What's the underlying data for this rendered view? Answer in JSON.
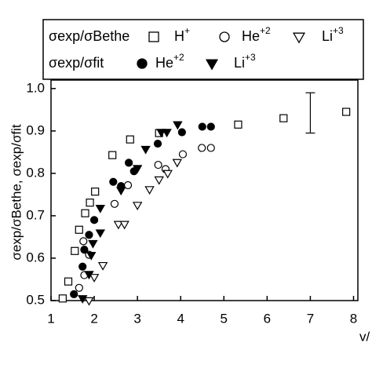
{
  "chart_data": {
    "type": "scatter",
    "x_label": "v/",
    "y_label": "σexp/σBethe, σexp/σfit",
    "xlim": [
      1,
      8.1
    ],
    "ylim": [
      0.5,
      1.02
    ],
    "xticks": [
      1,
      2,
      3,
      4,
      5,
      6,
      7,
      8
    ],
    "yticks": [
      0.5,
      0.6,
      0.7,
      0.8,
      0.9,
      {
        "value": 1.0,
        "label": "1.0"
      }
    ],
    "error_bar": {
      "x": 7,
      "low": 0.895,
      "high": 0.99
    },
    "series_groups": [
      {
        "label": "σexp/σBethe",
        "series": [
          {
            "name": "H+",
            "marker": "square",
            "filled": false,
            "color": "#000000",
            "x": [
              1.27,
              1.4,
              1.55,
              1.65,
              1.79,
              1.9,
              2.02,
              2.42,
              2.83,
              3.5,
              5.33,
              6.38,
              7.83
            ],
            "values": [
              0.505,
              0.545,
              0.617,
              0.667,
              0.706,
              0.731,
              0.757,
              0.843,
              0.88,
              0.895,
              0.915,
              0.93,
              0.945
            ]
          },
          {
            "name": "He+2",
            "marker": "circle",
            "filled": false,
            "color": "#000000",
            "x": [
              1.65,
              1.77,
              1.88,
              1.75,
              2.47,
              2.78,
              3.48,
              3.65,
              4.05,
              4.49,
              4.7
            ],
            "values": [
              0.53,
              0.56,
              0.608,
              0.64,
              0.728,
              0.772,
              0.82,
              0.81,
              0.845,
              0.86,
              0.86
            ]
          },
          {
            "name": "Li+3",
            "marker": "triangle-down",
            "filled": false,
            "color": "#000000",
            "x": [
              1.88,
              2.0,
              2.2,
              2.56,
              2.7,
              3.0,
              3.28,
              3.5,
              3.7,
              3.92
            ],
            "values": [
              0.5,
              0.555,
              0.583,
              0.68,
              0.68,
              0.725,
              0.762,
              0.785,
              0.8,
              0.826
            ]
          }
        ]
      },
      {
        "label": "σexp/σfit",
        "series": [
          {
            "name": "He+2",
            "marker": "circle",
            "filled": true,
            "color": "#000000",
            "x": [
              1.53,
              1.73,
              1.77,
              1.88,
              2.0,
              2.44,
              2.62,
              2.8,
              2.92,
              3.47,
              4.03,
              4.5,
              4.7
            ],
            "values": [
              0.515,
              0.58,
              0.62,
              0.655,
              0.69,
              0.78,
              0.77,
              0.825,
              0.805,
              0.87,
              0.897,
              0.91,
              0.91
            ]
          },
          {
            "name": "Li+3",
            "marker": "triangle-down",
            "filled": true,
            "color": "#000000",
            "x": [
              1.73,
              1.88,
              1.93,
              1.97,
              2.14,
              2.14,
              2.62,
              3.0,
              3.19,
              3.55,
              3.68,
              3.93
            ],
            "values": [
              0.505,
              0.562,
              0.607,
              0.635,
              0.66,
              0.718,
              0.76,
              0.812,
              0.857,
              0.897,
              0.897,
              0.915
            ]
          }
        ]
      }
    ]
  }
}
